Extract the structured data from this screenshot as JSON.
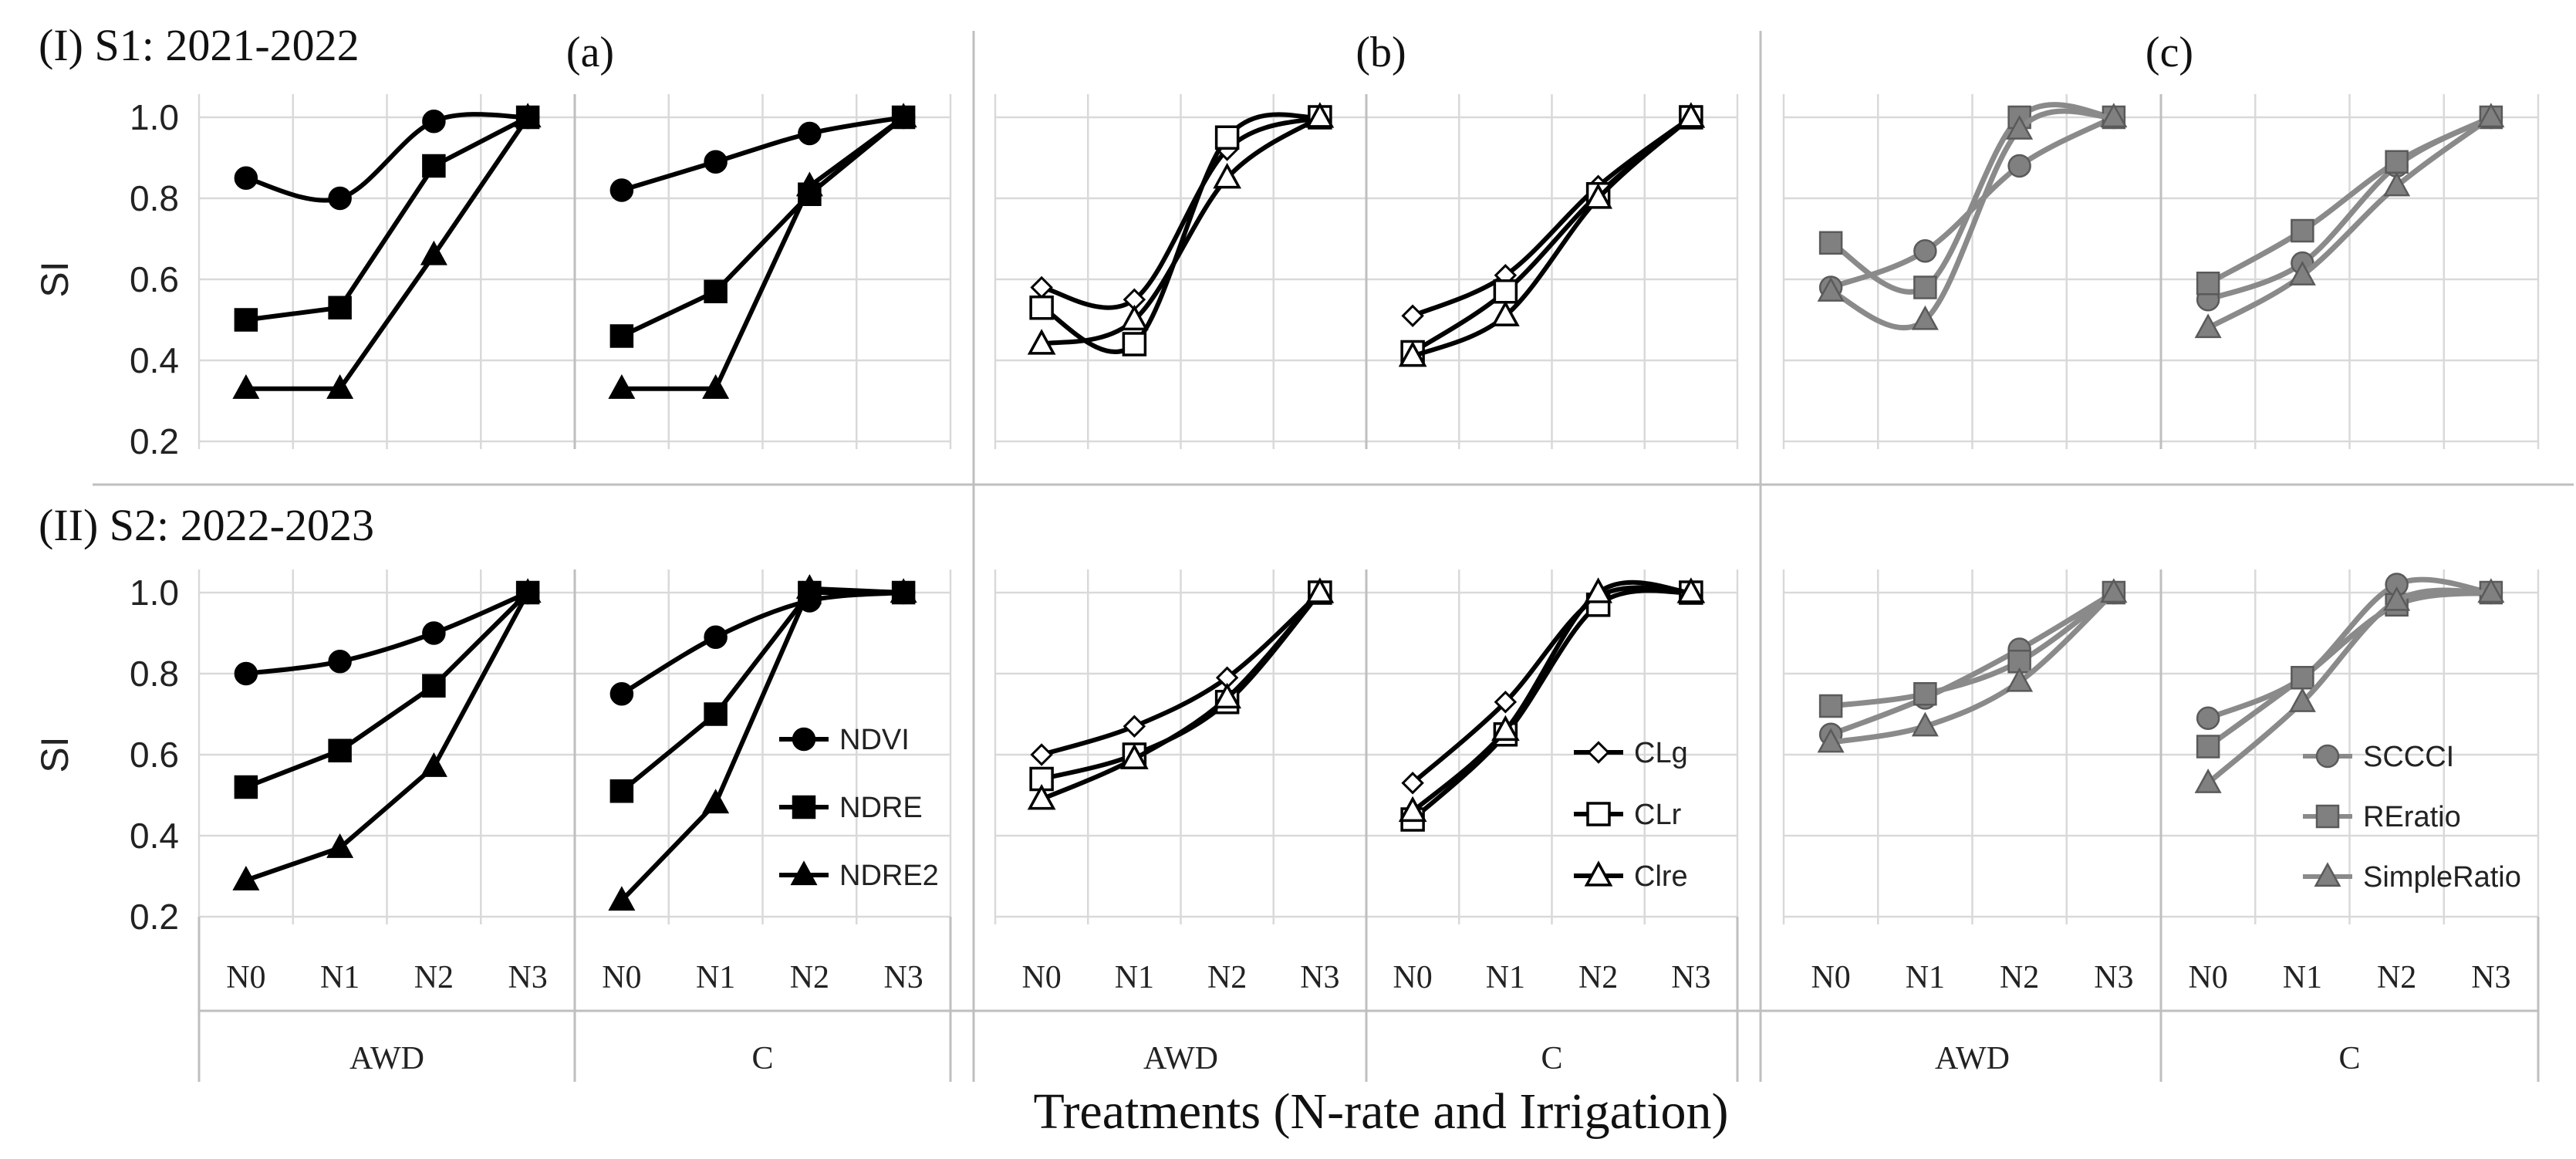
{
  "x_title": "Treatments (N-rate and Irrigation)",
  "row_titles": [
    "(I) S1: 2021-2022",
    "(II) S2: 2022-2023"
  ],
  "panel_labels": [
    "(a)",
    "(b)",
    "(c)"
  ],
  "ylabel": "SI",
  "ylim": [
    0.2,
    1.0
  ],
  "yticks": [
    "0.2",
    "0.4",
    "0.6",
    "0.8",
    "1.0"
  ],
  "categories": [
    "N0",
    "N1",
    "N2",
    "N3"
  ],
  "groups": [
    "AWD",
    "C"
  ],
  "chart_data": [
    {
      "type": "line",
      "title": "(I) S1: 2021-2022",
      "panel": "(a)",
      "ylabel": "SI",
      "ylim": [
        0.2,
        1.0
      ],
      "categories": [
        "N0",
        "N1",
        "N2",
        "N3"
      ],
      "groups": [
        "AWD",
        "C"
      ],
      "series": [
        {
          "name": "NDVI",
          "marker": "circle",
          "color": "#000000",
          "smooth": true,
          "values": [
            [
              0.85,
              0.8,
              0.99,
              1.0
            ],
            [
              0.82,
              0.89,
              0.96,
              1.0
            ]
          ]
        },
        {
          "name": "NDRE",
          "marker": "square",
          "color": "#000000",
          "smooth": false,
          "values": [
            [
              0.5,
              0.53,
              0.88,
              1.0
            ],
            [
              0.46,
              0.57,
              0.81,
              1.0
            ]
          ]
        },
        {
          "name": "NDRE2",
          "marker": "triangle",
          "color": "#000000",
          "smooth": false,
          "values": [
            [
              0.33,
              0.33,
              0.66,
              1.0
            ],
            [
              0.33,
              0.33,
              0.83,
              1.0
            ]
          ]
        }
      ]
    },
    {
      "type": "line",
      "title": "(I) S1: 2021-2022",
      "panel": "(b)",
      "ylim": [
        0.2,
        1.0
      ],
      "categories": [
        "N0",
        "N1",
        "N2",
        "N3"
      ],
      "groups": [
        "AWD",
        "C"
      ],
      "series": [
        {
          "name": "CLg",
          "marker": "diamond-open",
          "color": "#000000",
          "smooth": true,
          "values": [
            [
              0.58,
              0.55,
              0.92,
              1.0
            ],
            [
              0.51,
              0.61,
              0.83,
              1.0
            ]
          ]
        },
        {
          "name": "CLr",
          "marker": "square-open",
          "color": "#000000",
          "smooth": true,
          "values": [
            [
              0.53,
              0.44,
              0.95,
              1.0
            ],
            [
              0.42,
              0.57,
              0.81,
              1.0
            ]
          ]
        },
        {
          "name": "Clre",
          "marker": "triangle-open",
          "color": "#000000",
          "smooth": true,
          "values": [
            [
              0.44,
              0.5,
              0.85,
              1.0
            ],
            [
              0.41,
              0.51,
              0.8,
              1.0
            ]
          ]
        }
      ]
    },
    {
      "type": "line",
      "title": "(I) S1: 2021-2022",
      "panel": "(c)",
      "ylim": [
        0.2,
        1.0
      ],
      "categories": [
        "N0",
        "N1",
        "N2",
        "N3"
      ],
      "groups": [
        "AWD",
        "C"
      ],
      "series": [
        {
          "name": "SCCCI",
          "marker": "circle",
          "color": "#808080",
          "smooth": true,
          "values": [
            [
              0.58,
              0.67,
              0.88,
              1.0
            ],
            [
              0.55,
              0.64,
              0.88,
              1.0
            ]
          ]
        },
        {
          "name": "REratio",
          "marker": "square",
          "color": "#808080",
          "smooth": true,
          "values": [
            [
              0.69,
              0.58,
              1.0,
              1.0
            ],
            [
              0.59,
              0.72,
              0.89,
              1.0
            ]
          ]
        },
        {
          "name": "SimpleRatio",
          "marker": "triangle",
          "color": "#808080",
          "smooth": true,
          "values": [
            [
              0.57,
              0.5,
              0.97,
              1.0
            ],
            [
              0.48,
              0.61,
              0.83,
              1.0
            ]
          ]
        }
      ]
    },
    {
      "type": "line",
      "title": "(II) S2: 2022-2023",
      "panel": "(a)",
      "ylabel": "SI",
      "ylim": [
        0.2,
        1.0
      ],
      "categories": [
        "N0",
        "N1",
        "N2",
        "N3"
      ],
      "groups": [
        "AWD",
        "C"
      ],
      "series": [
        {
          "name": "NDVI",
          "marker": "circle",
          "color": "#000000",
          "smooth": true,
          "values": [
            [
              0.8,
              0.83,
              0.9,
              1.0
            ],
            [
              0.75,
              0.89,
              0.98,
              1.0
            ]
          ]
        },
        {
          "name": "NDRE",
          "marker": "square",
          "color": "#000000",
          "smooth": false,
          "values": [
            [
              0.52,
              0.61,
              0.77,
              1.0
            ],
            [
              0.51,
              0.7,
              1.0,
              1.0
            ]
          ]
        },
        {
          "name": "NDRE2",
          "marker": "triangle",
          "color": "#000000",
          "smooth": false,
          "values": [
            [
              0.29,
              0.37,
              0.57,
              1.0
            ],
            [
              0.24,
              0.48,
              1.01,
              1.0
            ]
          ]
        }
      ]
    },
    {
      "type": "line",
      "title": "(II) S2: 2022-2023",
      "panel": "(b)",
      "ylim": [
        0.2,
        1.0
      ],
      "categories": [
        "N0",
        "N1",
        "N2",
        "N3"
      ],
      "groups": [
        "AWD",
        "C"
      ],
      "series": [
        {
          "name": "CLg",
          "marker": "diamond-open",
          "color": "#000000",
          "smooth": true,
          "values": [
            [
              0.6,
              0.67,
              0.79,
              1.0
            ],
            [
              0.53,
              0.73,
              0.99,
              1.0
            ]
          ]
        },
        {
          "name": "CLr",
          "marker": "square-open",
          "color": "#000000",
          "smooth": true,
          "values": [
            [
              0.54,
              0.6,
              0.73,
              1.0
            ],
            [
              0.44,
              0.65,
              0.97,
              1.0
            ]
          ]
        },
        {
          "name": "Clre",
          "marker": "triangle-open",
          "color": "#000000",
          "smooth": true,
          "values": [
            [
              0.49,
              0.59,
              0.74,
              1.0
            ],
            [
              0.46,
              0.66,
              1.0,
              1.0
            ]
          ]
        }
      ]
    },
    {
      "type": "line",
      "title": "(II) S2: 2022-2023",
      "panel": "(c)",
      "ylim": [
        0.2,
        1.0
      ],
      "categories": [
        "N0",
        "N1",
        "N2",
        "N3"
      ],
      "groups": [
        "AWD",
        "C"
      ],
      "series": [
        {
          "name": "SCCCI",
          "marker": "circle",
          "color": "#808080",
          "smooth": true,
          "values": [
            [
              0.65,
              0.74,
              0.86,
              1.0
            ],
            [
              0.69,
              0.79,
              1.02,
              1.0
            ]
          ]
        },
        {
          "name": "REratio",
          "marker": "square",
          "color": "#808080",
          "smooth": true,
          "values": [
            [
              0.72,
              0.75,
              0.83,
              1.0
            ],
            [
              0.62,
              0.79,
              0.97,
              1.0
            ]
          ]
        },
        {
          "name": "SimpleRatio",
          "marker": "triangle",
          "color": "#808080",
          "smooth": true,
          "values": [
            [
              0.63,
              0.67,
              0.78,
              1.0
            ],
            [
              0.53,
              0.73,
              0.98,
              1.0
            ]
          ]
        }
      ]
    }
  ]
}
